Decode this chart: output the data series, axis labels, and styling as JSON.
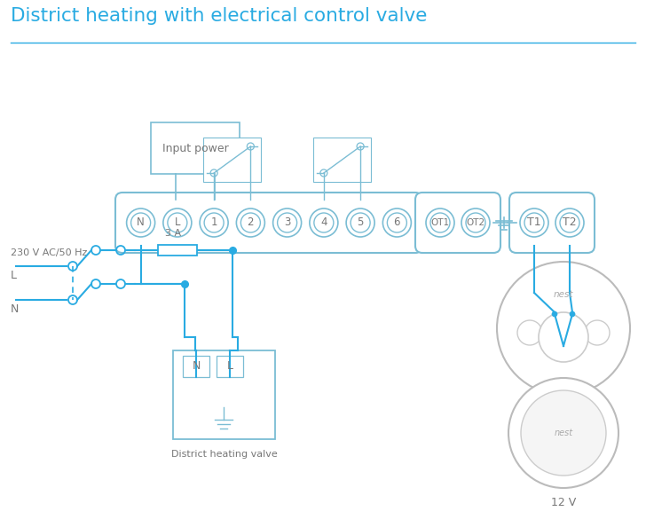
{
  "title": "District heating with electrical control valve",
  "title_color": "#29ABE2",
  "line_color": "#29ABE2",
  "border_color": "#7BBDD4",
  "text_color": "#777777",
  "bg_color": "#FFFFFF",
  "label_230v": "230 V AC/50 Hz",
  "label_L": "L",
  "label_N": "N",
  "label_3A": "3 A",
  "label_district": "District heating valve",
  "label_12v": "12 V",
  "label_input_power": "Input power"
}
